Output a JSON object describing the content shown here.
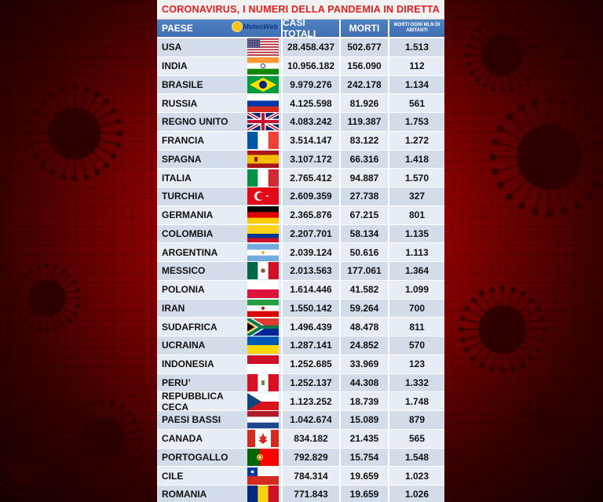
{
  "title": "CORONAVIRUS, I NUMERI DELLA PANDEMIA IN DIRETTA",
  "headers": {
    "country": "PAESE",
    "cases": "CASI TOTALI",
    "deaths": "MORTI",
    "rate": "MORTI OGNI MLN DI ABITANTI",
    "logo": "MeteoWeb"
  },
  "chart_data": {
    "type": "table",
    "columns": [
      "PAESE",
      "CASI TOTALI",
      "MORTI",
      "MORTI OGNI MLN DI ABITANTI"
    ],
    "rows": [
      {
        "country": "USA",
        "cases": "28.458.437",
        "deaths": "502.677",
        "rate": "1.513",
        "flag": "us"
      },
      {
        "country": "INDIA",
        "cases": "10.956.182",
        "deaths": "156.090",
        "rate": "112",
        "flag": "in"
      },
      {
        "country": "BRASILE",
        "cases": "9.979.276",
        "deaths": "242.178",
        "rate": "1.134",
        "flag": "br"
      },
      {
        "country": "RUSSIA",
        "cases": "4.125.598",
        "deaths": "81.926",
        "rate": "561",
        "flag": "ru"
      },
      {
        "country": "REGNO UNITO",
        "cases": "4.083.242",
        "deaths": "119.387",
        "rate": "1.753",
        "flag": "gb"
      },
      {
        "country": "FRANCIA",
        "cases": "3.514.147",
        "deaths": "83.122",
        "rate": "1.272",
        "flag": "fr"
      },
      {
        "country": "SPAGNA",
        "cases": "3.107.172",
        "deaths": "66.316",
        "rate": "1.418",
        "flag": "es"
      },
      {
        "country": "ITALIA",
        "cases": "2.765.412",
        "deaths": "94.887",
        "rate": "1.570",
        "flag": "it"
      },
      {
        "country": "TURCHIA",
        "cases": "2.609.359",
        "deaths": "27.738",
        "rate": "327",
        "flag": "tr"
      },
      {
        "country": "GERMANIA",
        "cases": "2.365.876",
        "deaths": "67.215",
        "rate": "801",
        "flag": "de"
      },
      {
        "country": "COLOMBIA",
        "cases": "2.207.701",
        "deaths": "58.134",
        "rate": "1.135",
        "flag": "co"
      },
      {
        "country": "ARGENTINA",
        "cases": "2.039.124",
        "deaths": "50.616",
        "rate": "1.113",
        "flag": "ar"
      },
      {
        "country": "MESSICO",
        "cases": "2.013.563",
        "deaths": "177.061",
        "rate": "1.364",
        "flag": "mx"
      },
      {
        "country": "POLONIA",
        "cases": "1.614.446",
        "deaths": "41.582",
        "rate": "1.099",
        "flag": "pl"
      },
      {
        "country": "IRAN",
        "cases": "1.550.142",
        "deaths": "59.264",
        "rate": "700",
        "flag": "ir"
      },
      {
        "country": "SUDAFRICA",
        "cases": "1.496.439",
        "deaths": "48.478",
        "rate": "811",
        "flag": "za"
      },
      {
        "country": "UCRAINA",
        "cases": "1.287.141",
        "deaths": "24.852",
        "rate": "570",
        "flag": "ua"
      },
      {
        "country": "INDONESIA",
        "cases": "1.252.685",
        "deaths": "33.969",
        "rate": "123",
        "flag": "id"
      },
      {
        "country": "PERU’",
        "cases": "1.252.137",
        "deaths": "44.308",
        "rate": "1.332",
        "flag": "pe"
      },
      {
        "country": "REPUBBLICA CECA",
        "cases": "1.123.252",
        "deaths": "18.739",
        "rate": "1.748",
        "flag": "cz"
      },
      {
        "country": "PAESI BASSI",
        "cases": "1.042.674",
        "deaths": "15.089",
        "rate": "879",
        "flag": "nl"
      },
      {
        "country": "CANADA",
        "cases": "834.182",
        "deaths": "21.435",
        "rate": "565",
        "flag": "ca"
      },
      {
        "country": "PORTOGALLO",
        "cases": "792.829",
        "deaths": "15.754",
        "rate": "1.548",
        "flag": "pt"
      },
      {
        "country": "CILE",
        "cases": "784.314",
        "deaths": "19.659",
        "rate": "1.023",
        "flag": "cl"
      },
      {
        "country": "ROMANIA",
        "cases": "771.843",
        "deaths": "19.659",
        "rate": "1.026",
        "flag": "ro"
      }
    ]
  },
  "colors": {
    "title": "#e0201e",
    "header": "#4a7cc0",
    "background": "#c80a0a"
  }
}
